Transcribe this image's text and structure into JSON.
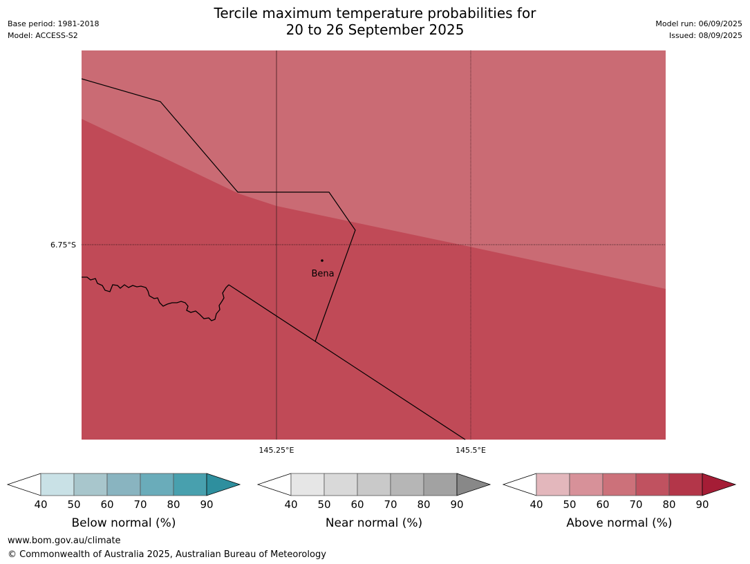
{
  "header": {
    "title_line1": "Tercile maximum temperature probabilities for",
    "title_line2": "20 to 26 September 2025",
    "base_period": "Base period: 1981-2018",
    "model": "Model: ACCESS-S2",
    "model_run": "Model run: 06/09/2025",
    "issued": "Issued: 08/09/2025"
  },
  "map": {
    "lat_label": "6.75°S",
    "lon_labels": [
      "145.25°E",
      "145.5°E"
    ],
    "place": "Bena",
    "colors": {
      "above_60_70": "#ca6b74",
      "above_70_80": "#c04a57"
    }
  },
  "legends": [
    {
      "title": "Below normal (%)",
      "ticks": [
        "40",
        "50",
        "60",
        "70",
        "80",
        "90"
      ],
      "colors": [
        "#ffffff",
        "#c9e1e6",
        "#a8c6cc",
        "#89b4c0",
        "#6aacba",
        "#48a0ae",
        "#2e8f9e"
      ]
    },
    {
      "title": "Near normal (%)",
      "ticks": [
        "40",
        "50",
        "60",
        "70",
        "80",
        "90"
      ],
      "colors": [
        "#ffffff",
        "#e6e6e6",
        "#d9d9d9",
        "#c9c9c9",
        "#b6b6b6",
        "#a2a2a2",
        "#888888"
      ]
    },
    {
      "title": "Above normal (%)",
      "ticks": [
        "40",
        "50",
        "60",
        "70",
        "80",
        "90"
      ],
      "colors": [
        "#ffffff",
        "#e3b7bc",
        "#d79199",
        "#cc717a",
        "#c05260",
        "#b33649",
        "#a51d36"
      ]
    }
  ],
  "footer": {
    "url": "www.bom.gov.au/climate",
    "copyright": "© Commonwealth of Australia 2025, Australian Bureau of Meteorology"
  }
}
